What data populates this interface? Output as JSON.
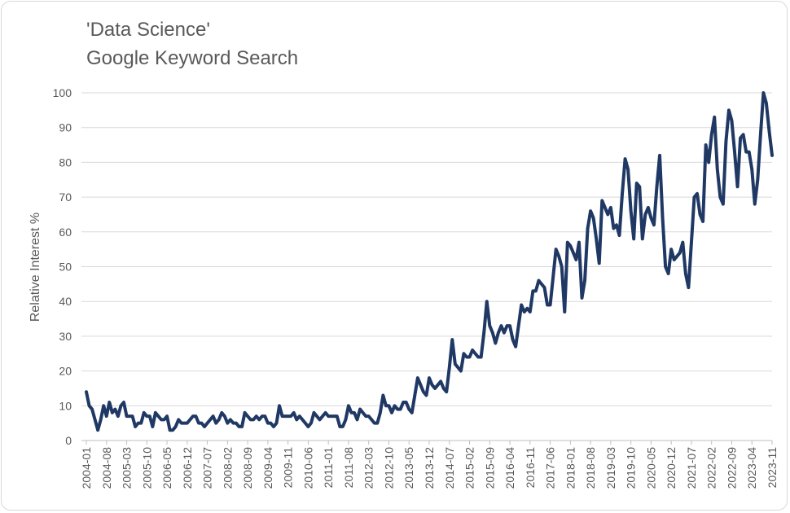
{
  "chart_data": {
    "type": "line",
    "title": "'Data Science'",
    "subtitle": "Google Keyword Search",
    "xlabel": "",
    "ylabel": "Relative Interest %",
    "ylim": [
      0,
      100
    ],
    "yticks": [
      0,
      10,
      20,
      30,
      40,
      50,
      60,
      70,
      80,
      90,
      100
    ],
    "start": "2004-01",
    "xtick_labels": [
      "2004-01",
      "2004-08",
      "2005-03",
      "2005-10",
      "2006-05",
      "2006-12",
      "2007-07",
      "2008-02",
      "2008-09",
      "2009-04",
      "2009-11",
      "2010-06",
      "2011-01",
      "2011-08",
      "2012-03",
      "2012-10",
      "2013-05",
      "2013-12",
      "2014-07",
      "2015-02",
      "2015-09",
      "2016-04",
      "2016-11",
      "2017-06",
      "2018-01",
      "2018-08",
      "2019-03",
      "2019-10",
      "2020-05",
      "2020-12",
      "2021-07",
      "2022-02",
      "2022-09",
      "2023-04",
      "2023-11"
    ],
    "grid": true,
    "legend": "none",
    "line_color": "#1f3864",
    "series": [
      {
        "values": [
          14,
          10,
          9,
          6,
          3,
          6,
          10,
          7,
          11,
          8,
          9,
          7,
          10,
          11,
          7,
          7,
          7,
          4,
          5,
          5,
          8,
          7,
          7,
          4,
          8,
          7,
          6,
          6,
          7,
          3,
          3,
          4,
          6,
          5,
          5,
          5,
          6,
          7,
          7,
          5,
          5,
          4,
          5,
          6,
          7,
          5,
          6,
          8,
          7,
          5,
          6,
          5,
          5,
          4,
          4,
          8,
          7,
          6,
          6,
          7,
          6,
          7,
          7,
          5,
          5,
          4,
          5,
          10,
          7,
          7,
          7,
          7,
          8,
          6,
          7,
          6,
          5,
          4,
          5,
          8,
          7,
          6,
          7,
          8,
          7,
          7,
          7,
          7,
          4,
          4,
          6,
          10,
          8,
          8,
          6,
          9,
          8,
          7,
          7,
          6,
          5,
          5,
          8,
          13,
          10,
          10,
          8,
          10,
          9,
          9,
          11,
          11,
          9,
          8,
          13,
          18,
          16,
          14,
          13,
          18,
          16,
          15,
          16,
          17,
          15,
          14,
          21,
          29,
          22,
          21,
          20,
          25,
          24,
          24,
          26,
          25,
          24,
          24,
          31,
          40,
          33,
          31,
          28,
          31,
          33,
          31,
          33,
          33,
          29,
          27,
          33,
          39,
          37,
          38,
          37,
          43,
          43,
          46,
          45,
          44,
          39,
          39,
          47,
          55,
          53,
          50,
          37,
          57,
          56,
          54,
          52,
          57,
          41,
          46,
          61,
          66,
          64,
          58,
          51,
          69,
          67,
          65,
          67,
          61,
          62,
          59,
          71,
          81,
          78,
          66,
          58,
          74,
          73,
          58,
          65,
          67,
          64,
          62,
          73,
          82,
          64,
          50,
          48,
          55,
          52,
          53,
          54,
          57,
          48,
          44,
          57,
          70,
          71,
          65,
          63,
          85,
          80,
          88,
          93,
          78,
          70,
          68,
          86,
          95,
          92,
          83,
          73,
          87,
          88,
          83,
          83,
          78,
          68,
          75,
          88,
          100,
          97,
          89,
          82
        ]
      }
    ]
  }
}
